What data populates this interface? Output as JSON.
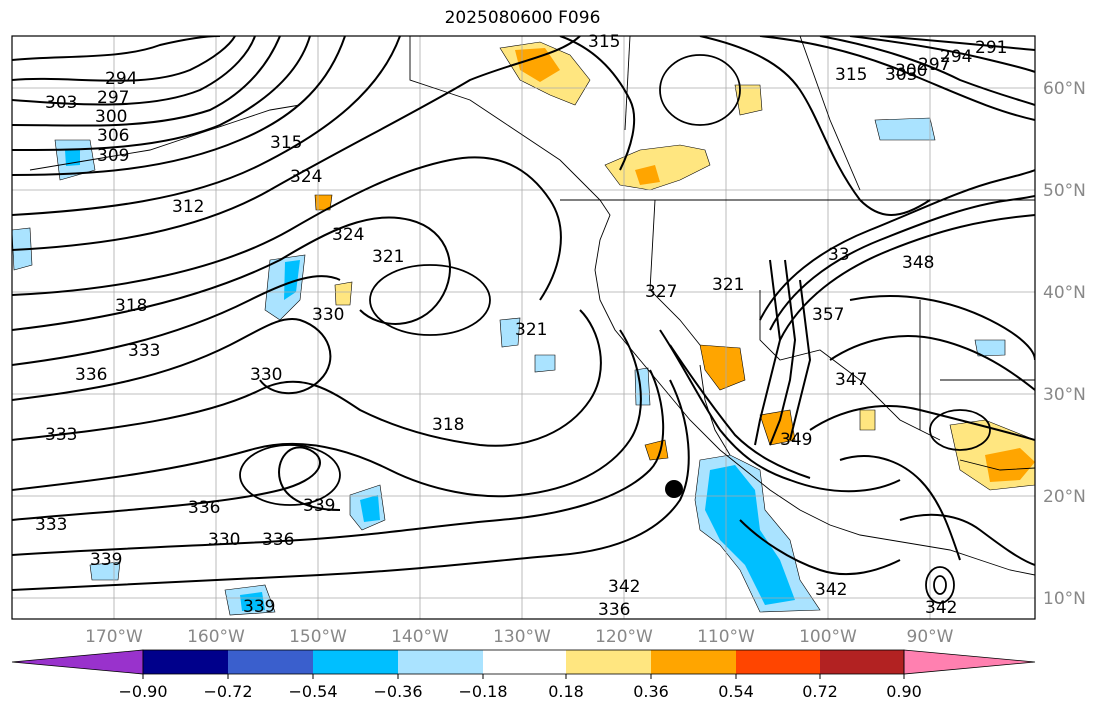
{
  "title": "2025080600 F096",
  "lat_labels": [
    "60°N",
    "50°N",
    "40°N",
    "30°N",
    "20°N",
    "10°N"
  ],
  "lon_labels": [
    "170°W",
    "160°W",
    "150°W",
    "140°W",
    "130°W",
    "120°W",
    "110°W",
    "100°W",
    "90°W"
  ],
  "contour_labels": [
    "294",
    "297",
    "300",
    "303",
    "306",
    "309",
    "312",
    "315",
    "315",
    "315",
    "318",
    "318",
    "321",
    "321",
    "324",
    "324",
    "327",
    "330",
    "330",
    "330",
    "333",
    "333",
    "333",
    "336",
    "336",
    "336",
    "339",
    "339",
    "342",
    "342",
    "342",
    "336",
    "339",
    "291",
    "294",
    "297",
    "300",
    "303",
    "348",
    "357",
    "347",
    "349",
    "33",
    "321"
  ],
  "colorbar": {
    "tick_labels": [
      "−0.90",
      "−0.72",
      "−0.54",
      "−0.36",
      "−0.18",
      "0.18",
      "0.36",
      "0.54",
      "0.72",
      "0.90"
    ],
    "colors": [
      "#9932cc",
      "#00008b",
      "#3a5fcd",
      "#00bfff",
      "#aae3ff",
      "#ffffff",
      "#ffe680",
      "#ffa500",
      "#ff4500",
      "#b22222",
      "#ff80b0"
    ]
  },
  "marker": {
    "name": "storm-center-dot",
    "lon": -114.5,
    "lat": 20.5
  }
}
